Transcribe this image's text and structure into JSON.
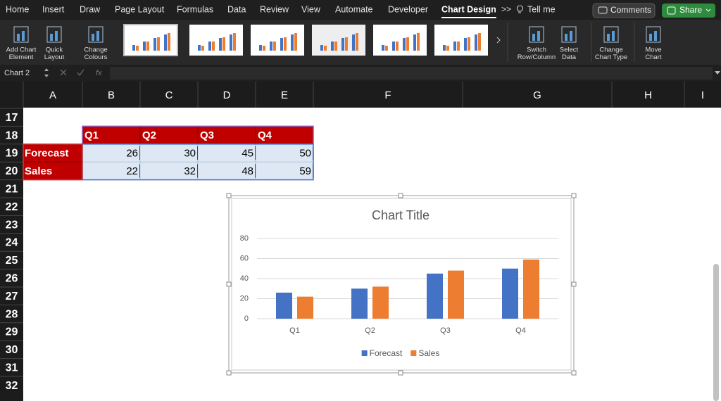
{
  "tabs": [
    "Home",
    "Insert",
    "Draw",
    "Page Layout",
    "Formulas",
    "Data",
    "Review",
    "View",
    "Automate",
    "Developer",
    "Chart Design"
  ],
  "active_tab": "Chart Design",
  "overflow": ">>",
  "tell_me": "Tell me",
  "buttons": {
    "comments": "Comments",
    "share": "Share"
  },
  "ribbon": [
    {
      "lines": [
        "Add Chart",
        "Element"
      ]
    },
    {
      "lines": [
        "Quick",
        "Layout"
      ]
    },
    {
      "lines": [
        "Change",
        "Colours"
      ]
    },
    {
      "lines": [
        "Switch",
        "Row/Column"
      ]
    },
    {
      "lines": [
        "Select",
        "Data"
      ]
    },
    {
      "lines": [
        "Change",
        "Chart Type"
      ]
    },
    {
      "lines": [
        "Move",
        "Chart"
      ]
    }
  ],
  "name_box": "Chart 2",
  "formula_icon": "fx",
  "columns": [
    "A",
    "B",
    "C",
    "D",
    "E",
    "F",
    "G",
    "H",
    "I"
  ],
  "rows": [
    17,
    18,
    19,
    20,
    21,
    22,
    23,
    24,
    25,
    26,
    27,
    28,
    29,
    30,
    31,
    32
  ],
  "table": {
    "header": [
      "Q1",
      "Q2",
      "Q3",
      "Q4"
    ],
    "rows": [
      {
        "label": "Forecast",
        "values": [
          26,
          30,
          45,
          50
        ]
      },
      {
        "label": "Sales",
        "values": [
          22,
          32,
          48,
          59
        ]
      }
    ]
  },
  "chart_data": {
    "type": "bar",
    "title": "Chart Title",
    "categories": [
      "Q1",
      "Q2",
      "Q3",
      "Q4"
    ],
    "series": [
      {
        "name": "Forecast",
        "color": "#4472c4",
        "values": [
          26,
          30,
          45,
          50
        ]
      },
      {
        "name": "Sales",
        "color": "#ed7d31",
        "values": [
          22,
          32,
          48,
          59
        ]
      }
    ],
    "ylim": [
      0,
      80
    ],
    "yticks": [
      0,
      20,
      40,
      60,
      80
    ],
    "grid": true,
    "legend": "bottom"
  }
}
